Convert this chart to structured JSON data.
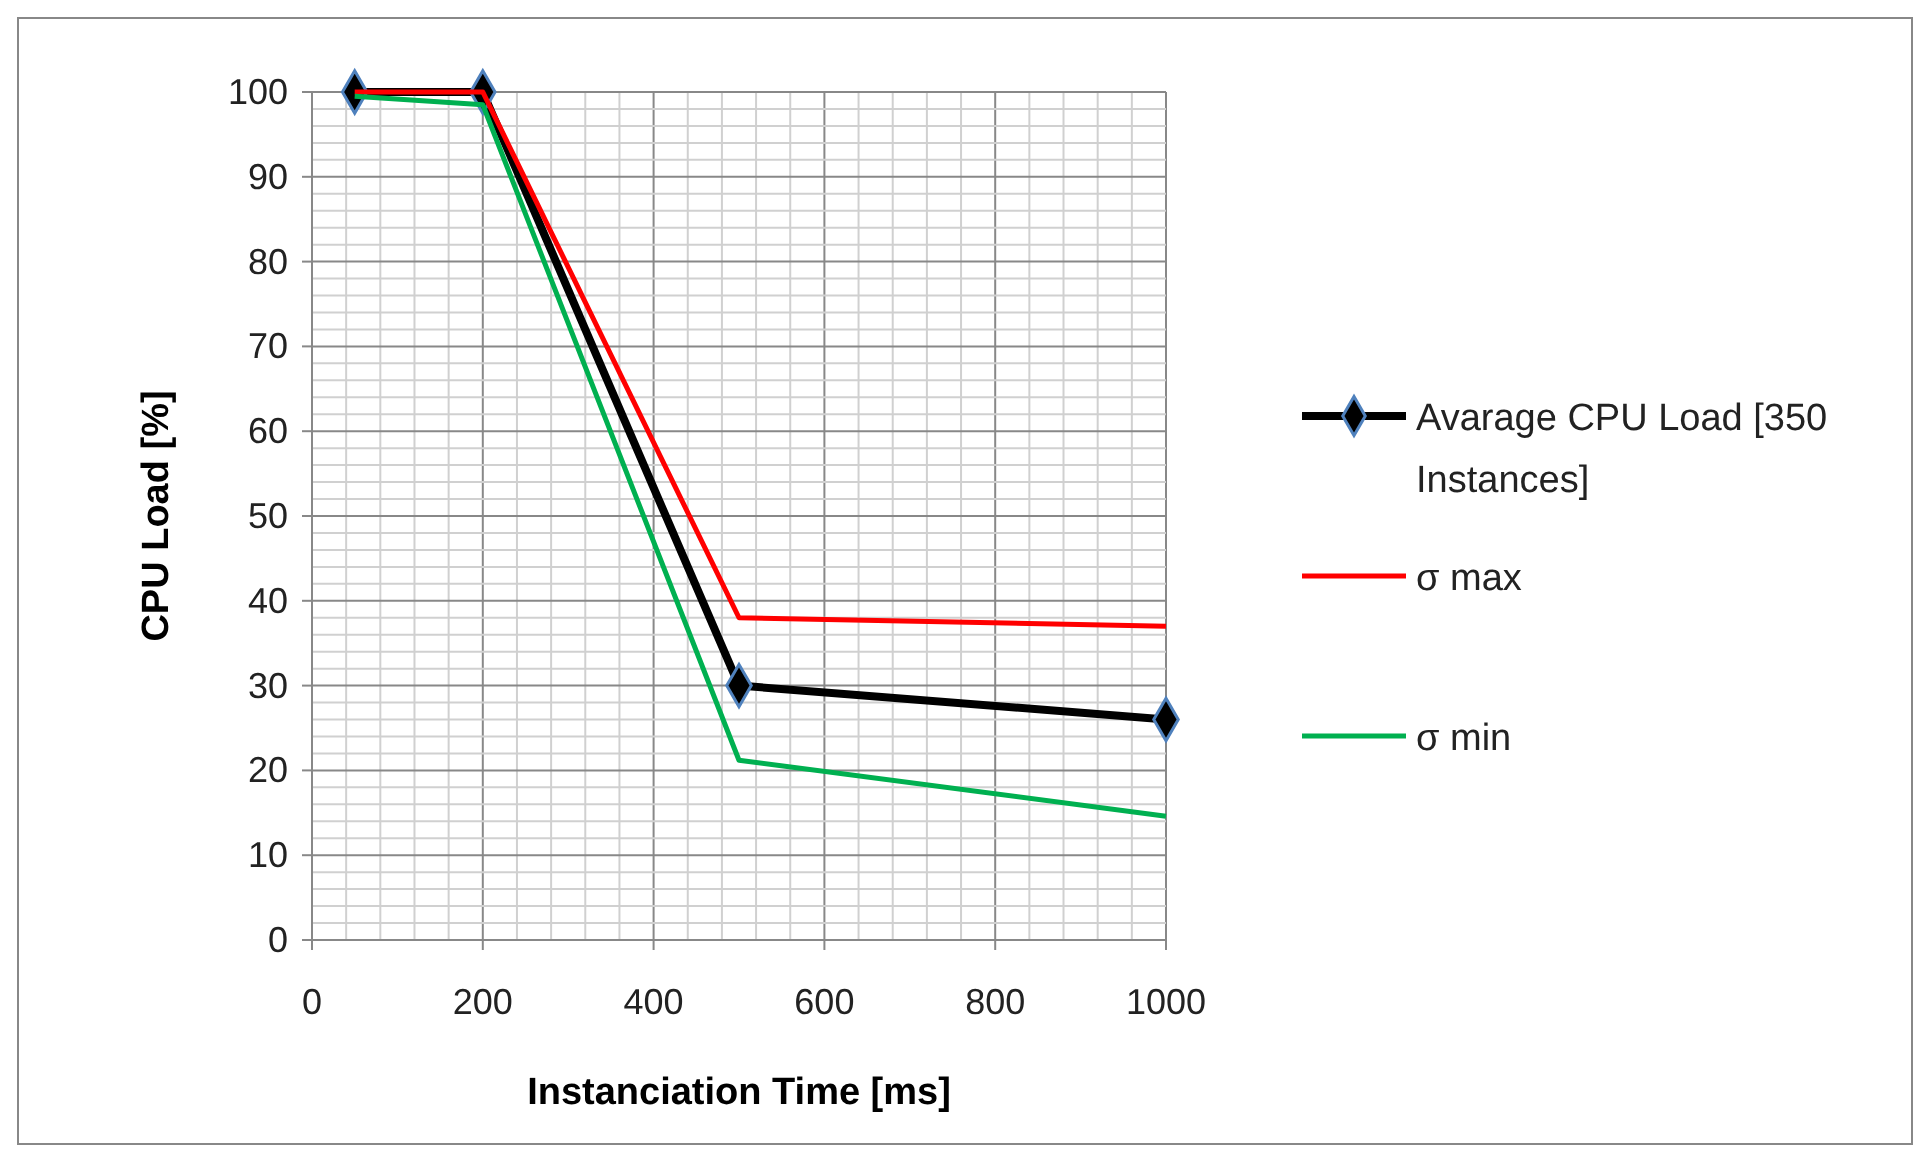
{
  "chart_data": {
    "type": "line",
    "xlabel": "Instanciation Time [ms]",
    "ylabel": "CPU Load [%]",
    "x": [
      50,
      200,
      500,
      1000
    ],
    "series": [
      {
        "name": "Avarage CPU Load [350 Instances]",
        "color": "#000000",
        "values": [
          100,
          100,
          30,
          26
        ],
        "marker": "diamond"
      },
      {
        "name": "σ max",
        "color": "#ff0000",
        "values": [
          100,
          100,
          38,
          37
        ],
        "marker": "none"
      },
      {
        "name": "σ min",
        "color": "#00b050",
        "values": [
          99.5,
          98.5,
          21.2,
          14.6
        ],
        "marker": "none"
      }
    ],
    "xlim": [
      0,
      1000
    ],
    "ylim": [
      0,
      100
    ],
    "xticks": [
      0,
      {
        "value": 40,
        "label": null
      },
      {
        "value": 80,
        "label": null
      },
      {
        "value": 120,
        "label": null
      },
      {
        "value": 160,
        "label": null
      },
      200,
      {
        "value": 240,
        "label": null
      },
      {
        "value": 280,
        "label": null
      },
      {
        "value": 320,
        "label": null
      },
      {
        "value": 360,
        "label": null
      },
      400,
      {
        "value": 440,
        "label": null
      },
      {
        "value": 480,
        "label": null
      },
      {
        "value": 520,
        "label": null
      },
      {
        "value": 560,
        "label": null
      },
      600,
      {
        "value": 640,
        "label": null
      },
      {
        "value": 680,
        "label": null
      },
      {
        "value": 720,
        "label": null
      },
      {
        "value": 760,
        "label": null
      },
      800,
      {
        "value": 840,
        "label": null
      },
      {
        "value": 880,
        "label": null
      },
      {
        "value": 920,
        "label": null
      },
      {
        "value": 960,
        "label": null
      },
      1000
    ],
    "yticks": [
      0,
      {
        "value": 2,
        "label": null
      },
      {
        "value": 4,
        "label": null
      },
      {
        "value": 6,
        "label": null
      },
      {
        "value": 8,
        "label": null
      },
      10,
      {
        "value": 12,
        "label": null
      },
      {
        "value": 14,
        "label": null
      },
      {
        "value": 16,
        "label": null
      },
      {
        "value": 18,
        "label": null
      },
      20,
      {
        "value": 22,
        "label": null
      },
      {
        "value": 24,
        "label": null
      },
      {
        "value": 26,
        "label": null
      },
      {
        "value": 28,
        "label": null
      },
      30,
      {
        "value": 32,
        "label": null
      },
      {
        "value": 34,
        "label": null
      },
      {
        "value": 36,
        "label": null
      },
      {
        "value": 38,
        "label": null
      },
      40,
      {
        "value": 42,
        "label": null
      },
      {
        "value": 44,
        "label": null
      },
      {
        "value": 46,
        "label": null
      },
      {
        "value": 48,
        "label": null
      },
      50,
      {
        "value": 52,
        "label": null
      },
      {
        "value": 54,
        "label": null
      },
      {
        "value": 56,
        "label": null
      },
      {
        "value": 58,
        "label": null
      },
      60,
      {
        "value": 62,
        "label": null
      },
      {
        "value": 64,
        "label": null
      },
      {
        "value": 66,
        "label": null
      },
      {
        "value": 68,
        "label": null
      },
      70,
      {
        "value": 72,
        "label": null
      },
      {
        "value": 74,
        "label": null
      },
      {
        "value": 76,
        "label": null
      },
      {
        "value": 78,
        "label": null
      },
      80,
      {
        "value": 82,
        "label": null
      },
      {
        "value": 84,
        "label": null
      },
      {
        "value": 86,
        "label": null
      },
      {
        "value": 88,
        "label": null
      },
      90,
      {
        "value": 92,
        "label": null
      },
      {
        "value": 94,
        "label": null
      },
      {
        "value": 96,
        "label": null
      },
      {
        "value": 98,
        "label": null
      },
      100
    ],
    "grid": true,
    "legend": "right",
    "line_style": "solid"
  }
}
